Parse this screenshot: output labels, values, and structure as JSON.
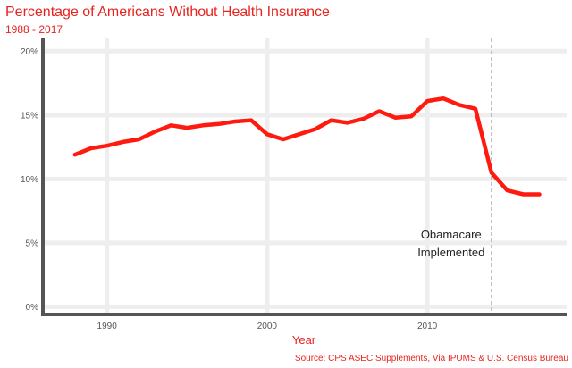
{
  "chart_data": {
    "type": "line",
    "title": "Percentage of Americans Without Health Insurance",
    "subtitle": "1988 - 2017",
    "xlabel": "Year",
    "ylabel": "",
    "source": "Source: CPS ASEC Supplements, Via IPUMS & U.S. Census Bureau",
    "xlim": [
      1986,
      2018.7
    ],
    "ylim": [
      -0.6,
      21
    ],
    "x_ticks": [
      1990,
      2000,
      2010
    ],
    "x_tick_labels": [
      "1990",
      "2000",
      "2010"
    ],
    "y_ticks": [
      0,
      5,
      10,
      15,
      20
    ],
    "y_tick_labels": [
      "0%",
      "5%",
      "10%",
      "15%",
      "20%"
    ],
    "grid": true,
    "series": [
      {
        "color": "#ff1a10",
        "x": [
          1988,
          1989,
          1990,
          1991,
          1992,
          1993,
          1994,
          1995,
          1996,
          1997,
          1998,
          1999,
          2000,
          2001,
          2002,
          2003,
          2004,
          2005,
          2006,
          2007,
          2008,
          2009,
          2010,
          2011,
          2012,
          2013,
          2014,
          2015,
          2016,
          2017
        ],
        "y": [
          11.9,
          12.4,
          12.6,
          12.9,
          13.1,
          13.7,
          14.2,
          14.0,
          14.2,
          14.3,
          14.5,
          14.6,
          13.5,
          13.1,
          13.5,
          13.9,
          14.6,
          14.4,
          14.7,
          15.3,
          14.8,
          14.9,
          16.1,
          16.3,
          15.8,
          15.5,
          10.5,
          9.1,
          8.8,
          8.8
        ]
      }
    ],
    "annotation": {
      "x": 2014,
      "lines": [
        "Obamacare",
        "Implemented"
      ]
    }
  }
}
